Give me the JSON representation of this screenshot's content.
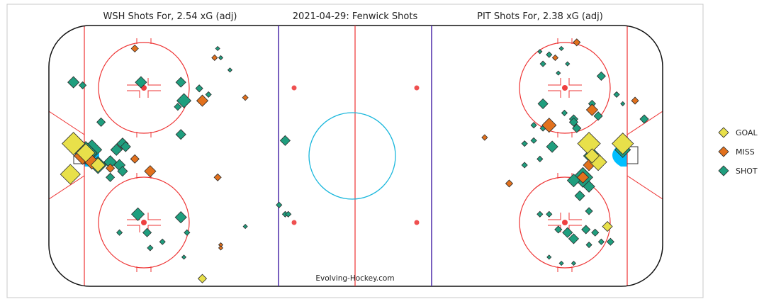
{
  "chart_data": {
    "type": "scatter",
    "title": "2021-04-29:  Fenwick Shots",
    "left_title": "WSH Shots For, 2.54 xG (adj)",
    "right_title": "PIT Shots For, 2.38 xG (adj)",
    "watermark": "Evolving-Hockey.com",
    "legend": [
      {
        "label": "GOAL",
        "color": "#e8e04a"
      },
      {
        "label": "MISS",
        "color": "#e2711d"
      },
      {
        "label": "SHOT",
        "color": "#1f9e7e"
      }
    ],
    "legend_position": "right",
    "x_range": [
      -100,
      100
    ],
    "y_range": [
      -42.5,
      42.5
    ],
    "series": [
      {
        "name": "GOAL",
        "color": "#e8e04a",
        "points": [
          {
            "x": -92,
            "y": 4,
            "size": 16
          },
          {
            "x": -88,
            "y": 1,
            "size": 13
          },
          {
            "x": -84,
            "y": -3,
            "size": 10
          },
          {
            "x": -93,
            "y": -6,
            "size": 14
          },
          {
            "x": -50,
            "y": -40,
            "size": 6
          },
          {
            "x": 76,
            "y": 4,
            "size": 16
          },
          {
            "x": 87,
            "y": 4,
            "size": 15
          },
          {
            "x": 79,
            "y": -2,
            "size": 12
          },
          {
            "x": 77,
            "y": 0,
            "size": 10
          },
          {
            "x": 82,
            "y": -23,
            "size": 7
          }
        ]
      },
      {
        "name": "MISS",
        "color": "#e2711d",
        "points": [
          {
            "x": -72,
            "y": 35,
            "size": 5
          },
          {
            "x": -46,
            "y": 32,
            "size": 4
          },
          {
            "x": -36,
            "y": 19,
            "size": 4
          },
          {
            "x": -50,
            "y": 18,
            "size": 8
          },
          {
            "x": -89,
            "y": 0,
            "size": 12
          },
          {
            "x": -86,
            "y": -2,
            "size": 10
          },
          {
            "x": -80,
            "y": -4,
            "size": 6
          },
          {
            "x": -72,
            "y": -1,
            "size": 6
          },
          {
            "x": -67,
            "y": -5,
            "size": 8
          },
          {
            "x": -45,
            "y": -7,
            "size": 5
          },
          {
            "x": -44,
            "y": -29,
            "size": 3
          },
          {
            "x": -44,
            "y": -30,
            "size": 3
          },
          {
            "x": 72,
            "y": 37,
            "size": 5
          },
          {
            "x": 65,
            "y": 32,
            "size": 4
          },
          {
            "x": 77,
            "y": 15,
            "size": 8
          },
          {
            "x": 91,
            "y": 18,
            "size": 5
          },
          {
            "x": 63,
            "y": 10,
            "size": 10
          },
          {
            "x": 42,
            "y": 6,
            "size": 4
          },
          {
            "x": 76,
            "y": -3,
            "size": 8
          },
          {
            "x": 74,
            "y": -7,
            "size": 8
          },
          {
            "x": 50,
            "y": -9,
            "size": 5
          }
        ]
      },
      {
        "name": "SHOT",
        "color": "#1f9e7e",
        "points": [
          {
            "x": -45,
            "y": 35,
            "size": 3
          },
          {
            "x": -44,
            "y": 32,
            "size": 3
          },
          {
            "x": -41,
            "y": 28,
            "size": 3
          },
          {
            "x": -92,
            "y": 24,
            "size": 8
          },
          {
            "x": -89,
            "y": 23,
            "size": 5
          },
          {
            "x": -70,
            "y": 24,
            "size": 8
          },
          {
            "x": -57,
            "y": 24,
            "size": 7
          },
          {
            "x": -51,
            "y": 22,
            "size": 5
          },
          {
            "x": -48,
            "y": 20,
            "size": 4
          },
          {
            "x": -56,
            "y": 18,
            "size": 10
          },
          {
            "x": -58,
            "y": 16,
            "size": 5
          },
          {
            "x": -83,
            "y": 11,
            "size": 6
          },
          {
            "x": -57,
            "y": 7,
            "size": 7
          },
          {
            "x": -76,
            "y": 4,
            "size": 8
          },
          {
            "x": -75,
            "y": 3,
            "size": 7
          },
          {
            "x": -78,
            "y": 2,
            "size": 8
          },
          {
            "x": -86,
            "y": 2,
            "size": 14
          },
          {
            "x": -88,
            "y": 1,
            "size": 16
          },
          {
            "x": -84,
            "y": -3,
            "size": 12
          },
          {
            "x": -80,
            "y": -2,
            "size": 9
          },
          {
            "x": -77,
            "y": -3,
            "size": 8
          },
          {
            "x": -76,
            "y": -5,
            "size": 7
          },
          {
            "x": -80,
            "y": -7,
            "size": 6
          },
          {
            "x": -23,
            "y": 5,
            "size": 7
          },
          {
            "x": -25,
            "y": -16,
            "size": 4
          },
          {
            "x": -23,
            "y": -19,
            "size": 4
          },
          {
            "x": -22,
            "y": -19,
            "size": 4
          },
          {
            "x": -71,
            "y": -19,
            "size": 9
          },
          {
            "x": -57,
            "y": -20,
            "size": 8
          },
          {
            "x": -77,
            "y": -25,
            "size": 4
          },
          {
            "x": -68,
            "y": -25,
            "size": 6
          },
          {
            "x": -55,
            "y": -25,
            "size": 4
          },
          {
            "x": -63,
            "y": -28,
            "size": 4
          },
          {
            "x": -67,
            "y": -30,
            "size": 4
          },
          {
            "x": -56,
            "y": -33,
            "size": 3
          },
          {
            "x": 60,
            "y": 34,
            "size": 3
          },
          {
            "x": 63,
            "y": 33,
            "size": 4
          },
          {
            "x": 67,
            "y": 35,
            "size": 3
          },
          {
            "x": 69,
            "y": 30,
            "size": 3
          },
          {
            "x": 61,
            "y": 30,
            "size": 4
          },
          {
            "x": 66,
            "y": 27,
            "size": 3
          },
          {
            "x": 80,
            "y": 26,
            "size": 6
          },
          {
            "x": 85,
            "y": 20,
            "size": 4
          },
          {
            "x": 87,
            "y": 17,
            "size": 3
          },
          {
            "x": 61,
            "y": 17,
            "size": 7
          },
          {
            "x": 77,
            "y": 17,
            "size": 5
          },
          {
            "x": 68,
            "y": 14,
            "size": 4
          },
          {
            "x": 71,
            "y": 12,
            "size": 6
          },
          {
            "x": 79,
            "y": 13,
            "size": 6
          },
          {
            "x": 94,
            "y": 12,
            "size": 6
          },
          {
            "x": 72,
            "y": 9,
            "size": 6
          },
          {
            "x": 71,
            "y": 11,
            "size": 6
          },
          {
            "x": 58,
            "y": 10,
            "size": 4
          },
          {
            "x": 61,
            "y": 9,
            "size": 4
          },
          {
            "x": 64,
            "y": 3,
            "size": 8
          },
          {
            "x": 58,
            "y": 5,
            "size": 4
          },
          {
            "x": 77,
            "y": 0,
            "size": 12
          },
          {
            "x": 87,
            "y": 2,
            "size": 11
          },
          {
            "x": 55,
            "y": 4,
            "size": 4
          },
          {
            "x": 55,
            "y": -3,
            "size": 4
          },
          {
            "x": 60,
            "y": -1,
            "size": 4
          },
          {
            "x": 74,
            "y": -7,
            "size": 14
          },
          {
            "x": 71,
            "y": -8,
            "size": 9
          },
          {
            "x": 76,
            "y": -10,
            "size": 8
          },
          {
            "x": 73,
            "y": -13,
            "size": 7
          },
          {
            "x": 60,
            "y": -19,
            "size": 4
          },
          {
            "x": 63,
            "y": -19,
            "size": 4
          },
          {
            "x": 66,
            "y": -24,
            "size": 5
          },
          {
            "x": 69,
            "y": -25,
            "size": 7
          },
          {
            "x": 71,
            "y": -27,
            "size": 7
          },
          {
            "x": 75,
            "y": -24,
            "size": 6
          },
          {
            "x": 78,
            "y": -25,
            "size": 5
          },
          {
            "x": 80,
            "y": -28,
            "size": 4
          },
          {
            "x": 76,
            "y": -29,
            "size": 4
          },
          {
            "x": 83,
            "y": -28,
            "size": 5
          },
          {
            "x": 76,
            "y": -18,
            "size": 5
          },
          {
            "x": 63,
            "y": -33,
            "size": 3
          },
          {
            "x": 67,
            "y": -35,
            "size": 3
          },
          {
            "x": 71,
            "y": -35,
            "size": 3
          },
          {
            "x": -36,
            "y": -23,
            "size": 3
          }
        ]
      }
    ]
  }
}
